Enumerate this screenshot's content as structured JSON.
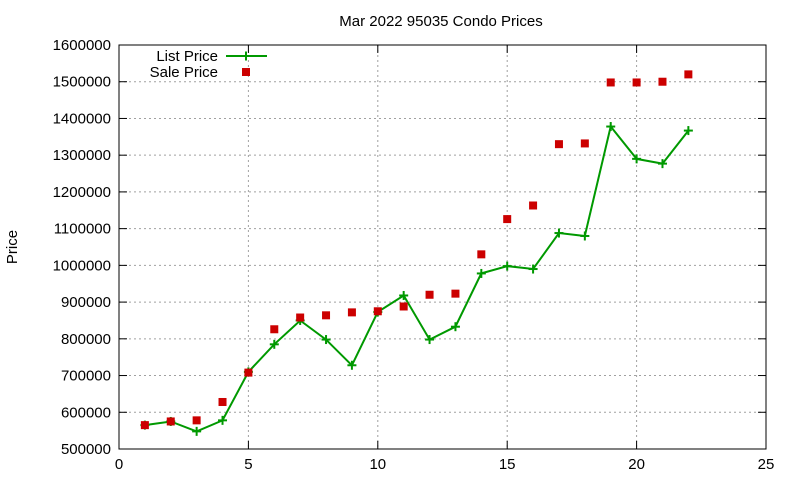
{
  "chart_data": {
    "type": "line",
    "title": "Mar 2022 95035 Condo Prices",
    "xlabel": "",
    "ylabel": "Price",
    "xlim": [
      0,
      25
    ],
    "ylim": [
      500000,
      1600000
    ],
    "xticks": [
      0,
      5,
      10,
      15,
      20,
      25
    ],
    "yticks": [
      500000,
      600000,
      700000,
      800000,
      900000,
      1000000,
      1100000,
      1200000,
      1300000,
      1400000,
      1500000,
      1600000
    ],
    "grid": true,
    "legend_position": "top-left",
    "series": [
      {
        "name": "List Price",
        "style": "line+cross",
        "color": "#009900",
        "x": [
          1,
          2,
          3,
          4,
          5,
          6,
          7,
          8,
          9,
          10,
          11,
          12,
          13,
          14,
          15,
          16,
          17,
          18,
          19,
          20,
          21,
          22
        ],
        "y": [
          565000,
          575000,
          548000,
          578000,
          710000,
          785000,
          850000,
          798000,
          728000,
          873000,
          918000,
          798000,
          833000,
          978000,
          998000,
          990000,
          1088000,
          1080000,
          1378000,
          1290000,
          1277000,
          1367000
        ]
      },
      {
        "name": "Sale Price",
        "style": "square",
        "color": "#cc0000",
        "x": [
          1,
          2,
          3,
          4,
          5,
          6,
          7,
          8,
          9,
          10,
          11,
          12,
          13,
          14,
          15,
          16,
          17,
          18,
          19,
          20,
          21,
          22
        ],
        "y": [
          565000,
          575000,
          578000,
          628000,
          708000,
          826000,
          858000,
          864000,
          872000,
          875000,
          888000,
          920000,
          923000,
          1030000,
          1126000,
          1163000,
          1330000,
          1332000,
          1498000,
          1498000,
          1500000,
          1520000
        ]
      }
    ]
  },
  "legend": {
    "title_marker_color": "#cc0000"
  }
}
